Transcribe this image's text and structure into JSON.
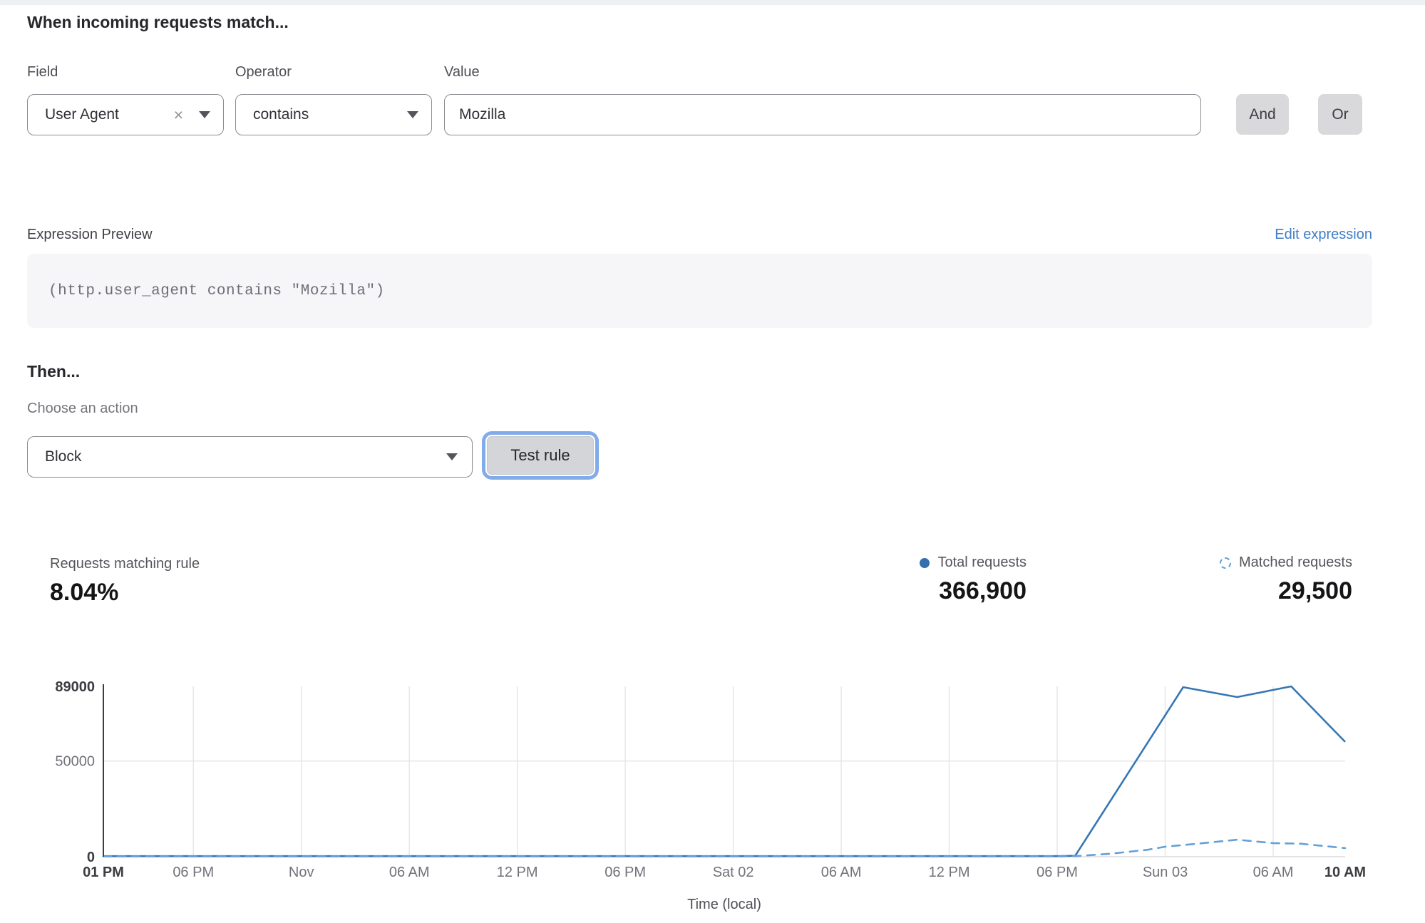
{
  "theme": {
    "accent_blue": "#3577b4",
    "light_blue": "#64a0d8",
    "link_blue": "#3f7ec6",
    "focus_ring": "#82abe9"
  },
  "icons": {
    "clear": "×"
  },
  "rule_builder": {
    "heading": "When incoming requests match...",
    "field": {
      "label": "Field",
      "value": "User Agent"
    },
    "operator": {
      "label": "Operator",
      "value": "contains"
    },
    "value": {
      "label": "Value",
      "value": "Mozilla"
    },
    "and_button": "And",
    "or_button": "Or"
  },
  "expression": {
    "label": "Expression Preview",
    "edit_link": "Edit expression",
    "code": "(http.user_agent contains \"Mozilla\")"
  },
  "action": {
    "heading": "Then...",
    "choose_label": "Choose an action",
    "selected": "Block",
    "test_button": "Test rule"
  },
  "stats": {
    "matching": {
      "label": "Requests matching rule",
      "value": "8.04%"
    },
    "total": {
      "label": "Total requests",
      "value": "366,900"
    },
    "matched": {
      "label": "Matched requests",
      "value": "29,500"
    }
  },
  "chart_data": {
    "type": "line",
    "xlabel": "Time (local)",
    "x_unit": "hours after first tick (01 PM)",
    "ylim": [
      0,
      89000
    ],
    "yticks": [
      {
        "value": 89000,
        "label": "89000",
        "bold": true
      },
      {
        "value": 50000,
        "label": "50000",
        "bold": false
      },
      {
        "value": 0,
        "label": "0",
        "bold": true
      }
    ],
    "xticks": [
      {
        "h": 0,
        "label": "01 PM",
        "bold": true,
        "grid": false
      },
      {
        "h": 5,
        "label": "06 PM",
        "bold": false,
        "grid": true
      },
      {
        "h": 11,
        "label": "Nov",
        "bold": false,
        "grid": true
      },
      {
        "h": 17,
        "label": "06 AM",
        "bold": false,
        "grid": true
      },
      {
        "h": 23,
        "label": "12 PM",
        "bold": false,
        "grid": true
      },
      {
        "h": 29,
        "label": "06 PM",
        "bold": false,
        "grid": true
      },
      {
        "h": 35,
        "label": "Sat 02",
        "bold": false,
        "grid": true
      },
      {
        "h": 41,
        "label": "06 AM",
        "bold": false,
        "grid": true
      },
      {
        "h": 47,
        "label": "12 PM",
        "bold": false,
        "grid": true
      },
      {
        "h": 53,
        "label": "06 PM",
        "bold": false,
        "grid": true
      },
      {
        "h": 59,
        "label": "Sun 03",
        "bold": false,
        "grid": true
      },
      {
        "h": 65,
        "label": "06 AM",
        "bold": false,
        "grid": true
      },
      {
        "h": 69,
        "label": "10 AM",
        "bold": true,
        "grid": false
      }
    ],
    "grid": {
      "horizontal_at": [
        50000
      ],
      "vertical": "at labeled time ticks"
    },
    "legend_position": "top-right above chart (stats row)",
    "series": [
      {
        "name": "Total requests",
        "style": "solid",
        "color": "#3577b4",
        "points": [
          [
            0,
            300
          ],
          [
            5,
            300
          ],
          [
            11,
            300
          ],
          [
            17,
            300
          ],
          [
            23,
            300
          ],
          [
            29,
            300
          ],
          [
            35,
            300
          ],
          [
            41,
            300
          ],
          [
            47,
            300
          ],
          [
            53,
            300
          ],
          [
            54,
            500
          ],
          [
            60,
            88600
          ],
          [
            63,
            83400
          ],
          [
            66,
            89000
          ],
          [
            69,
            60000
          ]
        ]
      },
      {
        "name": "Matched requests",
        "style": "dashed",
        "color": "#64a0d8",
        "points": [
          [
            0,
            150
          ],
          [
            5,
            150
          ],
          [
            11,
            150
          ],
          [
            17,
            150
          ],
          [
            23,
            150
          ],
          [
            29,
            150
          ],
          [
            35,
            150
          ],
          [
            41,
            150
          ],
          [
            47,
            150
          ],
          [
            53,
            150
          ],
          [
            54,
            300
          ],
          [
            56,
            1600
          ],
          [
            58,
            3600
          ],
          [
            59,
            5200
          ],
          [
            61,
            7000
          ],
          [
            63,
            8900
          ],
          [
            65,
            7100
          ],
          [
            66.5,
            6800
          ],
          [
            69,
            4500
          ]
        ]
      }
    ]
  }
}
